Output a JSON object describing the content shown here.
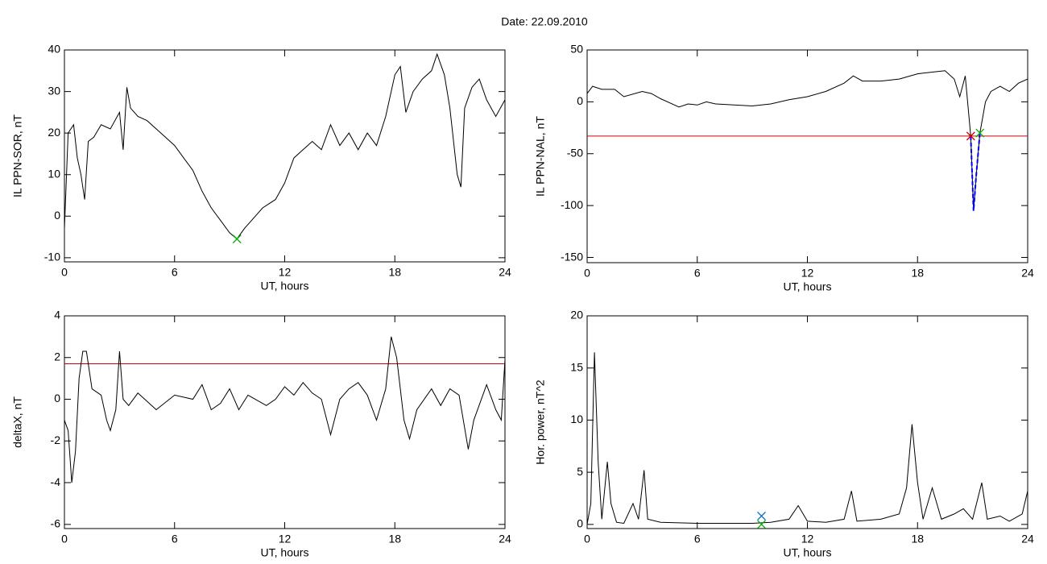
{
  "title": "Date:  22.09.2010",
  "chart_data": [
    {
      "type": "line",
      "xlabel": "UT, hours",
      "ylabel": "IL PPN-SOR, nT",
      "color": "#000000",
      "xlim": [
        0,
        24
      ],
      "xticks": [
        0,
        6,
        12,
        18,
        24
      ],
      "ylim": [
        -11,
        40
      ],
      "yticks": [
        -10,
        0,
        10,
        20,
        30,
        40
      ],
      "x": [
        0,
        0.2,
        0.5,
        0.7,
        0.9,
        1.1,
        1.3,
        1.6,
        2,
        2.5,
        3,
        3.2,
        3.4,
        3.6,
        4,
        4.5,
        5,
        5.5,
        6,
        6.5,
        7,
        7.5,
        8,
        8.5,
        9,
        9.4,
        9.8,
        10.2,
        10.8,
        11.5,
        12,
        12.5,
        13,
        13.5,
        14,
        14.5,
        15,
        15.5,
        16,
        16.5,
        17,
        17.5,
        18,
        18.3,
        18.6,
        19,
        19.5,
        20,
        20.3,
        20.7,
        21,
        21.4,
        21.6,
        21.8,
        22.2,
        22.6,
        23,
        23.5,
        24
      ],
      "values": [
        -3,
        20,
        22,
        14,
        10,
        4,
        18,
        19,
        22,
        21,
        25,
        16,
        31,
        26,
        24,
        23,
        21,
        19,
        17,
        14,
        11,
        6,
        2,
        -1,
        -4,
        -5.5,
        -3,
        -1,
        2,
        4,
        8,
        14,
        16,
        18,
        16,
        22,
        17,
        20,
        16,
        20,
        17,
        24,
        34,
        36,
        25,
        30,
        33,
        35,
        39,
        34,
        26,
        10,
        7,
        26,
        31,
        33,
        28,
        24,
        28
      ],
      "markers": [
        {
          "x": 9.4,
          "y": -5.5,
          "color": "#00b000"
        }
      ]
    },
    {
      "type": "line",
      "xlabel": "UT, hours",
      "ylabel": "IL PPN-NAL, nT",
      "color": "#000000",
      "xlim": [
        0,
        24
      ],
      "xticks": [
        0,
        6,
        12,
        18,
        24
      ],
      "ylim": [
        -155,
        50
      ],
      "yticks": [
        -150,
        -100,
        -50,
        0,
        50
      ],
      "x": [
        0,
        0.3,
        0.8,
        1.5,
        2,
        3,
        3.5,
        4,
        5,
        5.5,
        6,
        6.5,
        7,
        8,
        9,
        10,
        11,
        12,
        13,
        14,
        14.5,
        15,
        16,
        17,
        18,
        19,
        19.5,
        20,
        20.3,
        20.6,
        20.9,
        21.05,
        21.2,
        21.4,
        21.7,
        22,
        22.5,
        23,
        23.5,
        24
      ],
      "values": [
        8,
        15,
        12,
        12,
        5,
        10,
        8,
        3,
        -5,
        -2,
        -3,
        0,
        -2,
        -3,
        -4,
        -2,
        2,
        5,
        10,
        18,
        25,
        20,
        20,
        22,
        27,
        29,
        30,
        22,
        5,
        25,
        -33,
        -105,
        -70,
        -30,
        0,
        10,
        15,
        10,
        18,
        22
      ],
      "threshold": -33,
      "threshold_color": "#cc0000",
      "highlight": {
        "x": [
          20.9,
          21.05,
          21.2,
          21.4
        ],
        "values": [
          -33,
          -105,
          -70,
          -30
        ],
        "color": "#0000ff"
      },
      "markers": [
        {
          "x": 20.9,
          "y": -33,
          "color": "#cc0000"
        },
        {
          "x": 21.4,
          "y": -30,
          "color": "#00b000"
        }
      ]
    },
    {
      "type": "line",
      "xlabel": "UT, hours",
      "ylabel": "deltaX, nT",
      "color": "#000000",
      "xlim": [
        0,
        24
      ],
      "xticks": [
        0,
        6,
        12,
        18,
        24
      ],
      "ylim": [
        -6.2,
        4
      ],
      "yticks": [
        -6,
        -4,
        -2,
        0,
        2,
        4
      ],
      "x": [
        0,
        0.2,
        0.4,
        0.6,
        0.8,
        1,
        1.2,
        1.5,
        2,
        2.3,
        2.5,
        2.8,
        3,
        3.2,
        3.5,
        4,
        5,
        6,
        7,
        7.5,
        8,
        8.5,
        9,
        9.5,
        10,
        11,
        11.5,
        12,
        12.5,
        13,
        13.5,
        14,
        14.5,
        15,
        15.5,
        16,
        16.5,
        17,
        17.5,
        17.8,
        18.1,
        18.5,
        18.8,
        19.2,
        20,
        20.5,
        21,
        21.5,
        22,
        22.3,
        23,
        23.5,
        23.8,
        24
      ],
      "values": [
        -1,
        -1.5,
        -4,
        -2.5,
        1,
        2.3,
        2.3,
        0.5,
        0.2,
        -1,
        -1.5,
        -0.5,
        2.3,
        0,
        -0.3,
        0.3,
        -0.5,
        0.2,
        0,
        0.7,
        -0.5,
        -0.2,
        0.5,
        -0.5,
        0.2,
        -0.3,
        0,
        0.6,
        0.2,
        0.8,
        0.3,
        0,
        -1.7,
        0,
        0.5,
        0.8,
        0.2,
        -1,
        0.5,
        3,
        2,
        -1,
        -1.9,
        -0.5,
        0.5,
        -0.3,
        0.5,
        0.2,
        -2.4,
        -1,
        0.7,
        -0.5,
        -1,
        1.9
      ],
      "threshold": 1.7,
      "threshold_color": "#cc0000"
    },
    {
      "type": "line",
      "xlabel": "UT, hours",
      "ylabel": "Hor. power, nT^2",
      "color": "#000000",
      "xlim": [
        0,
        24
      ],
      "xticks": [
        0,
        6,
        12,
        18,
        24
      ],
      "ylim": [
        -0.4,
        20
      ],
      "yticks": [
        0,
        5,
        10,
        15,
        20
      ],
      "x": [
        0,
        0.2,
        0.4,
        0.6,
        0.8,
        1.1,
        1.3,
        1.6,
        2,
        2.5,
        2.8,
        3.1,
        3.3,
        4,
        6,
        9,
        10,
        11,
        11.5,
        12,
        13,
        14,
        14.4,
        14.7,
        16,
        17,
        17.4,
        17.7,
        18,
        18.3,
        18.8,
        19.3,
        20,
        20.5,
        21,
        21.5,
        21.8,
        22.5,
        23,
        23.7,
        24
      ],
      "values": [
        0,
        2,
        16.5,
        6,
        0.5,
        6,
        2,
        0.2,
        0.1,
        2,
        0.5,
        5.2,
        0.5,
        0.2,
        0.1,
        0.1,
        0.2,
        0.5,
        1.8,
        0.3,
        0.2,
        0.5,
        3.2,
        0.3,
        0.5,
        1,
        3.5,
        9.6,
        4,
        0.5,
        3.5,
        0.5,
        1,
        1.5,
        0.5,
        4,
        0.5,
        0.8,
        0.3,
        1,
        3.2
      ],
      "markers": [
        {
          "x": 9.5,
          "y": 0.8,
          "color": "#0070c0"
        },
        {
          "x": 9.5,
          "y": 0,
          "color": "#00b000"
        }
      ]
    }
  ]
}
